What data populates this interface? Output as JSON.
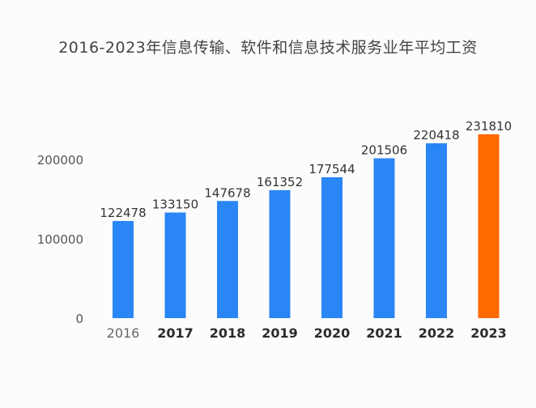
{
  "chart_data": {
    "type": "bar",
    "title": "2016-2023年信息传输、软件和信息技术服务业年平均工资",
    "xlabel": "",
    "ylabel": "",
    "categories": [
      "2016",
      "2017",
      "2018",
      "2019",
      "2020",
      "2021",
      "2022",
      "2023"
    ],
    "values": [
      122478,
      133150,
      147678,
      161352,
      177544,
      201506,
      220418,
      231810
    ],
    "yticks": [
      "0",
      "100000",
      "200000"
    ],
    "ylim": [
      0,
      240000
    ],
    "grid": false,
    "legend": "none",
    "colors": {
      "default": "#2a86f5",
      "highlight": "#ff6a00",
      "highlight_index": 7
    }
  }
}
